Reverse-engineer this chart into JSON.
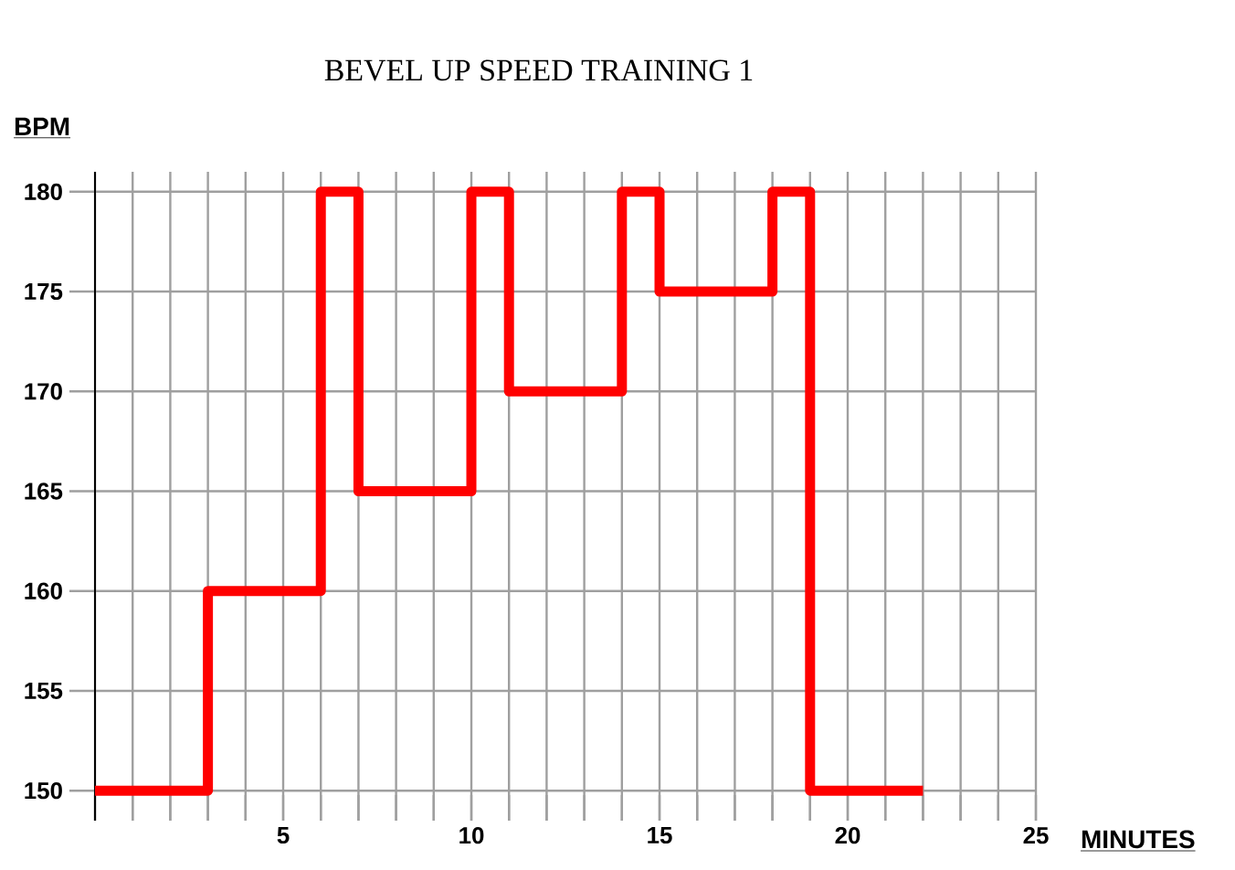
{
  "chart_data": {
    "type": "step",
    "title": "BEVEL UP SPEED TRAINING 1",
    "xlabel": "MINUTES",
    "ylabel": "BPM",
    "x": [
      0,
      3,
      6,
      7,
      10,
      11,
      14,
      15,
      18,
      19,
      22
    ],
    "series": [
      {
        "color": "#ff0000",
        "values": [
          150,
          160,
          180,
          165,
          180,
          170,
          180,
          175,
          180,
          150,
          150
        ]
      }
    ],
    "xlim": [
      0,
      25
    ],
    "ylim": [
      148.5,
      181
    ],
    "xticks": [
      {
        "value": 0,
        "label": null
      },
      {
        "value": 1,
        "label": null
      },
      {
        "value": 2,
        "label": null
      },
      {
        "value": 3,
        "label": null
      },
      {
        "value": 4,
        "label": null
      },
      5,
      {
        "value": 6,
        "label": null
      },
      {
        "value": 7,
        "label": null
      },
      {
        "value": 8,
        "label": null
      },
      {
        "value": 9,
        "label": null
      },
      10,
      {
        "value": 11,
        "label": null
      },
      {
        "value": 12,
        "label": null
      },
      {
        "value": 13,
        "label": null
      },
      {
        "value": 14,
        "label": null
      },
      15,
      {
        "value": 16,
        "label": null
      },
      {
        "value": 17,
        "label": null
      },
      {
        "value": 18,
        "label": null
      },
      {
        "value": 19,
        "label": null
      },
      20,
      {
        "value": 21,
        "label": null
      },
      {
        "value": 22,
        "label": null
      },
      {
        "value": 23,
        "label": null
      },
      {
        "value": 24,
        "label": null
      },
      25
    ],
    "yticks": [
      150,
      155,
      160,
      165,
      170,
      175,
      180
    ],
    "grid": true,
    "marker": "none",
    "line_style": "solid"
  }
}
